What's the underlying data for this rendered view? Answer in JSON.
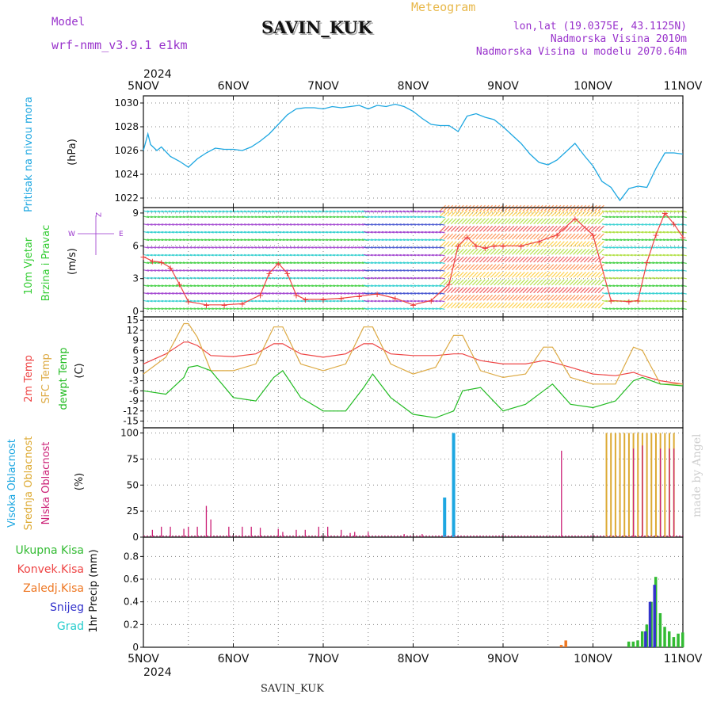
{
  "header": {
    "model_label": "Model",
    "model_value": "wrf-nmm_v3.9.1 e1km",
    "title": "Meteogram",
    "station": "SAVIN_KUK",
    "lonlat": "lon,lat (19.0375E, 43.1125N)",
    "altitude": "Nadmorska Visina 2010m",
    "model_altitude": "Nadmorska Visina u modelu 2070.64m",
    "footer_station": "SAVIN_KUK",
    "made_by": "made by Angel"
  },
  "colors": {
    "pressure": "#1ea7e1",
    "wind_axis": "#33cc33",
    "temp2m": "#ee4444",
    "sfc": "#ddaa44",
    "dewpt": "#22bb22",
    "cloud_high": "#1ea7e1",
    "cloud_mid": "#ddaa33",
    "cloud_low": "#cc2277",
    "precip_total": "#33bb33",
    "precip_conv": "#ee4444",
    "precip_frz": "#ee7722",
    "precip_snow": "#3333cc",
    "precip_grad": "#22cccc"
  },
  "chart_data": [
    {
      "type": "line",
      "panel": "pressure",
      "year": "2024",
      "day_labels": [
        "5NOV",
        "6NOV",
        "7NOV",
        "8NOV",
        "9NOV",
        "10NOV",
        "11NOV"
      ],
      "ylabel": [
        "Pritisak na nivou mora",
        "(hPa)"
      ],
      "ylim": [
        1021.2,
        1030.6
      ],
      "yticks": [
        1022,
        1024,
        1026,
        1028,
        1030
      ],
      "x": [
        0,
        0.05,
        0.08,
        0.15,
        0.2,
        0.3,
        0.4,
        0.5,
        0.6,
        0.7,
        0.8,
        0.9,
        1.0,
        1.1,
        1.2,
        1.3,
        1.4,
        1.5,
        1.6,
        1.7,
        1.8,
        1.9,
        2.0,
        2.1,
        2.2,
        2.3,
        2.4,
        2.5,
        2.6,
        2.7,
        2.8,
        2.9,
        3.0,
        3.1,
        3.2,
        3.3,
        3.4,
        3.5,
        3.6,
        3.7,
        3.8,
        3.9,
        4.0,
        4.1,
        4.2,
        4.3,
        4.4,
        4.5,
        4.6,
        4.7,
        4.8,
        4.9,
        5.0,
        5.1,
        5.2,
        5.3,
        5.4,
        5.5,
        5.6,
        5.7,
        5.8,
        5.9,
        6.0
      ],
      "series": [
        {
          "values": [
            1026,
            1027.4,
            1026.5,
            1026,
            1026.3,
            1025.5,
            1025.1,
            1024.6,
            1025.3,
            1025.8,
            1026.2,
            1026.1,
            1026.1,
            1026,
            1026.3,
            1026.8,
            1027.4,
            1028.2,
            1029,
            1029.5,
            1029.6,
            1029.6,
            1029.5,
            1029.7,
            1029.6,
            1029.7,
            1029.8,
            1029.5,
            1029.8,
            1029.7,
            1029.9,
            1029.7,
            1029.3,
            1028.7,
            1028.2,
            1028.1,
            1028.1,
            1027.6,
            1028.9,
            1029.1,
            1028.8,
            1028.6,
            1028,
            1027.3,
            1026.6,
            1025.7,
            1025,
            1024.8,
            1025.2,
            1025.9,
            1026.6,
            1025.6,
            1024.7,
            1023.4,
            1022.9,
            1021.8,
            1022.8,
            1023,
            1022.9,
            1024.5,
            1025.8,
            1025.8,
            1025.7
          ]
        }
      ]
    },
    {
      "type": "line",
      "panel": "wind",
      "ylabel": [
        "10m Vjetar",
        "Brzina i Pravac",
        "(m/s)"
      ],
      "compass_labels": [
        "Z",
        "W",
        "E"
      ],
      "ylim": [
        -0.5,
        9.5
      ],
      "yticks": [
        0,
        3,
        6,
        9
      ],
      "x": [
        0,
        0.1,
        0.2,
        0.3,
        0.4,
        0.5,
        0.7,
        0.9,
        1.1,
        1.3,
        1.4,
        1.5,
        1.6,
        1.7,
        1.8,
        2.0,
        2.2,
        2.4,
        2.6,
        2.8,
        3.0,
        3.2,
        3.4,
        3.5,
        3.6,
        3.7,
        3.8,
        3.9,
        4.0,
        4.2,
        4.4,
        4.6,
        4.8,
        5.0,
        5.2,
        5.4,
        5.5,
        5.6,
        5.7,
        5.8,
        5.9,
        6.0
      ],
      "series": [
        {
          "values": [
            5,
            4.6,
            4.5,
            4,
            2.5,
            0.9,
            0.6,
            0.6,
            0.7,
            1.5,
            3.5,
            4.4,
            3.5,
            1.5,
            1.1,
            1.1,
            1.2,
            1.4,
            1.6,
            1.2,
            0.6,
            1,
            2.5,
            6,
            6.8,
            6,
            5.8,
            6,
            6,
            6,
            6.4,
            7,
            8.5,
            7,
            1,
            0.9,
            1,
            4.5,
            7,
            9,
            8,
            6.8
          ]
        }
      ]
    },
    {
      "type": "line",
      "panel": "temperature",
      "ylabel": [
        "2m Temp",
        "SFC Temp",
        "dewpt Temp",
        "(C)"
      ],
      "ylim": [
        -17,
        16
      ],
      "yticks": [
        -15,
        -12,
        -9,
        -6,
        -3,
        0,
        3,
        6,
        9,
        12,
        15
      ],
      "x": [
        0,
        0.25,
        0.45,
        0.5,
        0.6,
        0.75,
        1.0,
        1.25,
        1.45,
        1.55,
        1.75,
        2.0,
        2.25,
        2.45,
        2.55,
        2.75,
        3.0,
        3.25,
        3.45,
        3.55,
        3.75,
        4.0,
        4.25,
        4.45,
        4.55,
        4.75,
        5.0,
        5.25,
        5.45,
        5.55,
        5.75,
        6.0
      ],
      "series": [
        {
          "name": "2m Temp",
          "values": [
            2,
            5,
            8.5,
            8.5,
            7.5,
            4.5,
            4.2,
            5,
            8,
            8,
            5,
            4,
            5,
            8,
            8,
            5,
            4.5,
            4.5,
            5,
            5,
            3,
            2,
            2,
            3,
            2.5,
            1,
            -1,
            -1.5,
            -0.5,
            -1.5,
            -3,
            -4
          ]
        },
        {
          "name": "SFC Temp",
          "values": [
            -1,
            4,
            14,
            14,
            10,
            0,
            0,
            2,
            13,
            13,
            2,
            0,
            2,
            13,
            13,
            2,
            -1,
            1,
            10.5,
            10.5,
            0,
            -2,
            -1,
            7,
            7,
            -2,
            -4,
            -4,
            7,
            6,
            -4,
            -4
          ]
        },
        {
          "name": "dewpt Temp",
          "values": [
            -6,
            -7,
            -2,
            1,
            1.5,
            0,
            -8,
            -9,
            -2,
            0,
            -8,
            -12,
            -12,
            -5,
            -1,
            -8,
            -13,
            -14,
            -12,
            -6,
            -5,
            -12,
            -10,
            -6,
            -4,
            -10,
            -11,
            -9,
            -3,
            -2,
            -4,
            -4.5
          ]
        }
      ]
    },
    {
      "type": "bar",
      "panel": "cloud",
      "ylabel": [
        "Visoka Oblacnost",
        "Srednja Oblacnost",
        "Niska Oblacnost",
        "(%)"
      ],
      "ylim": [
        0,
        105
      ],
      "yticks": [
        0,
        25,
        50,
        75,
        100
      ],
      "series": [
        {
          "name": "Visoka Oblacnost",
          "x": [
            3.35,
            3.45
          ],
          "values": [
            38,
            100
          ]
        },
        {
          "name": "Srednja Oblacnost",
          "x": [
            5.15,
            5.2,
            5.25,
            5.3,
            5.35,
            5.4,
            5.45,
            5.5,
            5.55,
            5.6,
            5.65,
            5.7,
            5.75,
            5.8,
            5.85,
            5.9
          ],
          "values": [
            100,
            100,
            100,
            100,
            100,
            100,
            100,
            100,
            100,
            100,
            100,
            100,
            100,
            100,
            100,
            100
          ]
        },
        {
          "name": "Niska Oblacnost",
          "x": [
            0.1,
            0.2,
            0.3,
            0.45,
            0.5,
            0.6,
            0.7,
            0.75,
            0.95,
            1.1,
            1.2,
            1.3,
            1.5,
            1.55,
            1.7,
            1.8,
            1.95,
            2.05,
            2.2,
            2.3,
            2.35,
            2.5,
            2.9,
            3.1,
            4.65,
            5.45,
            5.55,
            5.75,
            5.85,
            5.9
          ],
          "values": [
            7,
            10,
            10,
            8,
            10,
            10,
            30,
            17,
            10,
            10,
            10,
            9,
            8,
            5,
            7,
            7,
            10,
            10,
            7,
            4,
            5,
            5,
            3,
            3,
            83,
            85,
            88,
            85,
            85,
            85
          ]
        }
      ]
    },
    {
      "type": "bar",
      "panel": "precip",
      "ylabel": [
        "1hr Precip (mm)"
      ],
      "legend": [
        "Ukupna Kisa",
        "Konvek.Kisa",
        "Zaledj.Kisa",
        "Snijeg",
        "Grad"
      ],
      "ylim": [
        0,
        0.97
      ],
      "yticks": [
        0,
        0.2,
        0.4,
        0.6,
        0.8
      ],
      "series": [
        {
          "name": "Ukupna Kisa",
          "x": [
            5.4,
            5.45,
            5.5,
            5.55,
            5.6,
            5.65,
            5.7,
            5.75,
            5.8,
            5.85,
            5.9,
            5.95,
            6.0
          ],
          "values": [
            0.05,
            0.05,
            0.06,
            0.14,
            0.2,
            0.4,
            0.62,
            0.3,
            0.18,
            0.14,
            0.09,
            0.12,
            0.13
          ]
        },
        {
          "name": "Snijeg",
          "x": [
            5.6,
            5.65,
            5.7
          ],
          "values": [
            0.14,
            0.4,
            0.55
          ]
        },
        {
          "name": "Zaledj.Kisa",
          "x": [
            4.65,
            4.7
          ],
          "values": [
            0.02,
            0.06
          ]
        }
      ]
    }
  ]
}
